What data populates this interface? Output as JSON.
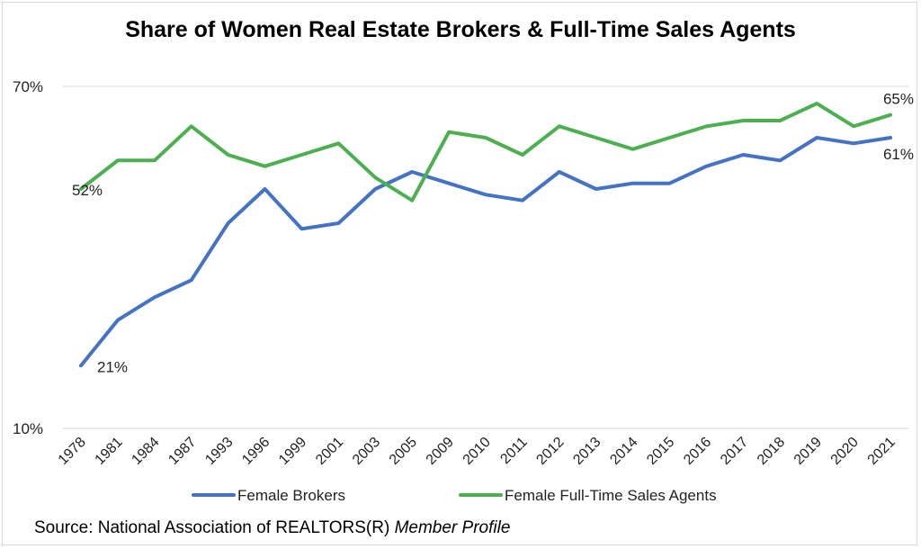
{
  "chart_data": {
    "type": "line",
    "title": "Share of Women Real Estate Brokers & Full-Time Sales Agents",
    "categories": [
      "1978",
      "1981",
      "1984",
      "1987",
      "1993",
      "1996",
      "1999",
      "2001",
      "2003",
      "2005",
      "2009",
      "2010",
      "2011",
      "2012",
      "2013",
      "2014",
      "2015",
      "2016",
      "2017",
      "2018",
      "2019",
      "2020",
      "2021"
    ],
    "series": [
      {
        "name": "Female Brokers",
        "color": "#4472C4",
        "values": [
          21,
          29,
          33,
          36,
          46,
          52,
          45,
          46,
          52,
          55,
          53,
          51,
          50,
          55,
          52,
          53,
          53,
          56,
          58,
          57,
          61,
          60,
          61
        ],
        "labels": {
          "0": "21%",
          "22": "61%"
        }
      },
      {
        "name": "Female Full-Time Sales Agents",
        "color": "#4CAF50",
        "values": [
          52,
          57,
          57,
          63,
          58,
          56,
          58,
          60,
          54,
          50,
          62,
          61,
          58,
          63,
          61,
          59,
          61,
          63,
          64,
          64,
          67,
          63,
          65
        ],
        "labels": {
          "0": "52%",
          "22": "65%"
        }
      }
    ],
    "yticks": [
      "10%",
      "70%"
    ],
    "ylim": [
      10,
      70
    ],
    "grid": false,
    "legend": "bottom"
  },
  "source": {
    "prefix": "Source: National Association of REALTORS(R) ",
    "italic": "Member Profile"
  }
}
